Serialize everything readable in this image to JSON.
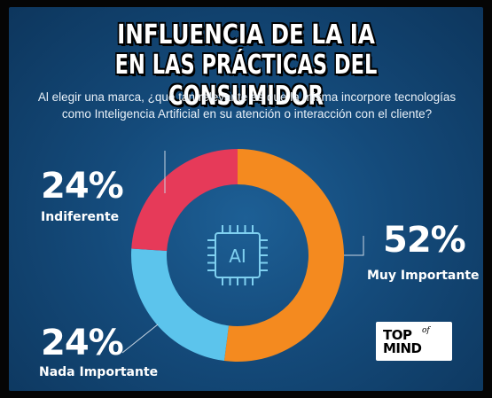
{
  "title_line1": "INFLUENCIA DE LA IA",
  "title_line2": "EN LAS PRÁCTICAS DEL CONSUMIDOR",
  "subtitle": "Al elegir una marca, ¿qué tan relevante es que la misma incorpore tecnologías como Inteligencia Artificial en su atención o interacción con el cliente?",
  "center_icon": "ai-chip-icon",
  "center_label": "AI",
  "colors": {
    "muy_importante": "#f48a1f",
    "nada_importante": "#5cc4ec",
    "indiferente": "#e63a59",
    "background": "#144a7a"
  },
  "logo": {
    "top": "TOP",
    "of": "of",
    "mind": "MIND"
  },
  "chart_data": {
    "type": "pie",
    "style": "donut",
    "slices": [
      {
        "label": "Muy Importante",
        "value": 52,
        "display": "52%",
        "color": "#f48a1f"
      },
      {
        "label": "Nada Importante",
        "value": 24,
        "display": "24%",
        "color": "#5cc4ec"
      },
      {
        "label": "Indiferente",
        "value": 24,
        "display": "24%",
        "color": "#e63a59"
      }
    ]
  }
}
